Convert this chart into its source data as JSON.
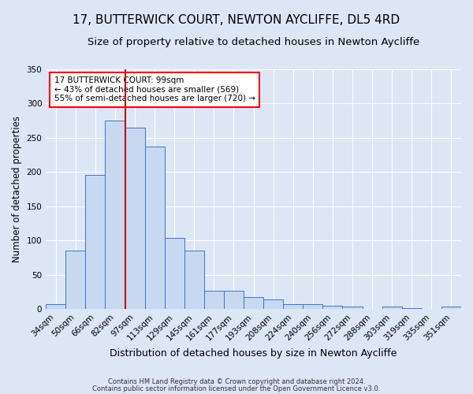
{
  "title": "17, BUTTERWICK COURT, NEWTON AYCLIFFE, DL5 4RD",
  "subtitle": "Size of property relative to detached houses in Newton Aycliffe",
  "xlabel": "Distribution of detached houses by size in Newton Aycliffe",
  "ylabel": "Number of detached properties",
  "categories": [
    "34sqm",
    "50sqm",
    "66sqm",
    "82sqm",
    "97sqm",
    "113sqm",
    "129sqm",
    "145sqm",
    "161sqm",
    "177sqm",
    "193sqm",
    "208sqm",
    "224sqm",
    "240sqm",
    "256sqm",
    "272sqm",
    "288sqm",
    "303sqm",
    "319sqm",
    "335sqm",
    "351sqm"
  ],
  "values": [
    7,
    85,
    196,
    275,
    265,
    237,
    104,
    85,
    26,
    26,
    17,
    14,
    7,
    7,
    5,
    3,
    0,
    3,
    1,
    0,
    3
  ],
  "bar_color": "#c6d9f0",
  "bar_edge_color": "#4472c4",
  "vline_color": "#cc0000",
  "vline_pos": 3.5,
  "annotation_text": "17 BUTTERWICK COURT: 99sqm\n← 43% of detached houses are smaller (569)\n55% of semi-detached houses are larger (720) →",
  "footnote1": "Contains HM Land Registry data © Crown copyright and database right 2024.",
  "footnote2": "Contains public sector information licensed under the Open Government Licence v3.0.",
  "ylim": [
    0,
    350
  ],
  "fig_facecolor": "#dce6f5",
  "plot_facecolor": "#dce6f5",
  "title_fontsize": 11,
  "subtitle_fontsize": 9.5,
  "tick_fontsize": 7.5,
  "ylabel_fontsize": 8.5,
  "xlabel_fontsize": 9
}
